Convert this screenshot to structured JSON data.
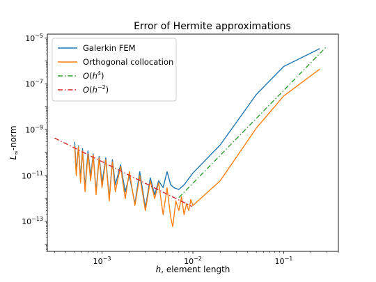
{
  "chart_data": {
    "type": "line",
    "title": "Error of Hermite approximations",
    "xlabel": {
      "italic": "h",
      "rest": ", element length"
    },
    "ylabel": {
      "base": "L",
      "sub": "∞",
      "rest": "-norm"
    },
    "x_scale": "log",
    "y_scale": "log",
    "xlim": [
      0.00025,
      0.4
    ],
    "ylim": [
      5e-15,
      1.5e-05
    ],
    "x_ticks": [
      {
        "value": 0.001,
        "base": "10",
        "exp": "−3"
      },
      {
        "value": 0.01,
        "base": "10",
        "exp": "−2"
      },
      {
        "value": 0.1,
        "base": "10",
        "exp": "−1"
      }
    ],
    "y_ticks": [
      {
        "value": 1e-13,
        "base": "10",
        "exp": "−13"
      },
      {
        "value": 1e-11,
        "base": "10",
        "exp": "−11"
      },
      {
        "value": 1e-09,
        "base": "10",
        "exp": "−9"
      },
      {
        "value": 1e-07,
        "base": "10",
        "exp": "−7"
      },
      {
        "value": 1e-05,
        "base": "10",
        "exp": "−5"
      }
    ],
    "grid": false,
    "legend_position": "upper-left",
    "series": [
      {
        "name": "Galerkin FEM",
        "color": "#1f77b4",
        "style": "solid",
        "x": [
          0.0005,
          0.00052,
          0.00055,
          0.00058,
          0.00061,
          0.00065,
          0.0007,
          0.00075,
          0.0008,
          0.00086,
          0.00093,
          0.001,
          0.0011,
          0.0012,
          0.0013,
          0.0014,
          0.0016,
          0.0018,
          0.002,
          0.0023,
          0.0026,
          0.003,
          0.0034,
          0.0038,
          0.0042,
          0.0047,
          0.0052,
          0.0057,
          0.0062,
          0.007,
          0.008,
          0.01,
          0.02,
          0.05,
          0.1,
          0.25
        ],
        "y": [
          3e-10,
          1.5e-11,
          2e-10,
          8e-12,
          1.5e-10,
          3e-12,
          1.2e-10,
          1e-11,
          9e-11,
          2e-12,
          7e-11,
          5e-12,
          6e-11,
          1e-12,
          5e-11,
          4e-12,
          3e-11,
          2e-12,
          1e-11,
          6e-13,
          1.5e-11,
          4e-13,
          8e-12,
          1.5e-12,
          6e-12,
          3e-12,
          1.5e-11,
          4e-12,
          3e-12,
          2.5e-12,
          4e-12,
          1.3e-11,
          2.2e-10,
          3.5e-08,
          5.8e-07,
          3.5e-06
        ]
      },
      {
        "name": "Orthogonal collocation",
        "color": "#ff7f0e",
        "style": "solid",
        "x": [
          0.0005,
          0.00052,
          0.00055,
          0.00058,
          0.00061,
          0.00065,
          0.0007,
          0.00075,
          0.0008,
          0.00086,
          0.00093,
          0.001,
          0.0011,
          0.0012,
          0.0013,
          0.0014,
          0.0016,
          0.0018,
          0.002,
          0.0023,
          0.0026,
          0.003,
          0.0034,
          0.0038,
          0.0042,
          0.0047,
          0.0052,
          0.0057,
          0.006,
          0.0065,
          0.007,
          0.0075,
          0.008,
          0.0085,
          0.009,
          0.0095,
          0.01,
          0.02,
          0.05,
          0.1,
          0.25
        ],
        "y": [
          2e-10,
          1e-11,
          1.8e-10,
          5e-12,
          1.2e-10,
          2e-12,
          9e-11,
          6e-12,
          8e-11,
          1.5e-12,
          6e-11,
          3e-12,
          5e-11,
          8e-13,
          4e-11,
          2e-12,
          2.5e-11,
          1e-12,
          1.5e-11,
          5e-13,
          1e-11,
          3e-13,
          6e-12,
          1e-12,
          5e-12,
          2e-13,
          3e-12,
          1.5e-13,
          6e-14,
          8e-13,
          3e-13,
          1.2e-12,
          2e-13,
          6e-13,
          3e-13,
          9e-13,
          5e-13,
          6e-12,
          1.2e-09,
          3e-08,
          4.5e-07
        ]
      },
      {
        "name": "O(h4)",
        "label_parts": {
          "pre": "O(",
          "base": "h",
          "exp": "4",
          "post": ")"
        },
        "color": "#2ca02c",
        "style": "dashdot",
        "x": [
          0.007,
          0.3
        ],
        "y": [
          1.1e-12,
          4.5e-06
        ]
      },
      {
        "name": "O(h-2)",
        "label_parts": {
          "pre": "O(",
          "base": "h",
          "exp": "−2",
          "post": ")"
        },
        "color": "#d62728",
        "style": "dashdot",
        "x": [
          0.0003,
          0.0098
        ],
        "y": [
          4.4e-10,
          4.5e-13
        ]
      }
    ]
  }
}
